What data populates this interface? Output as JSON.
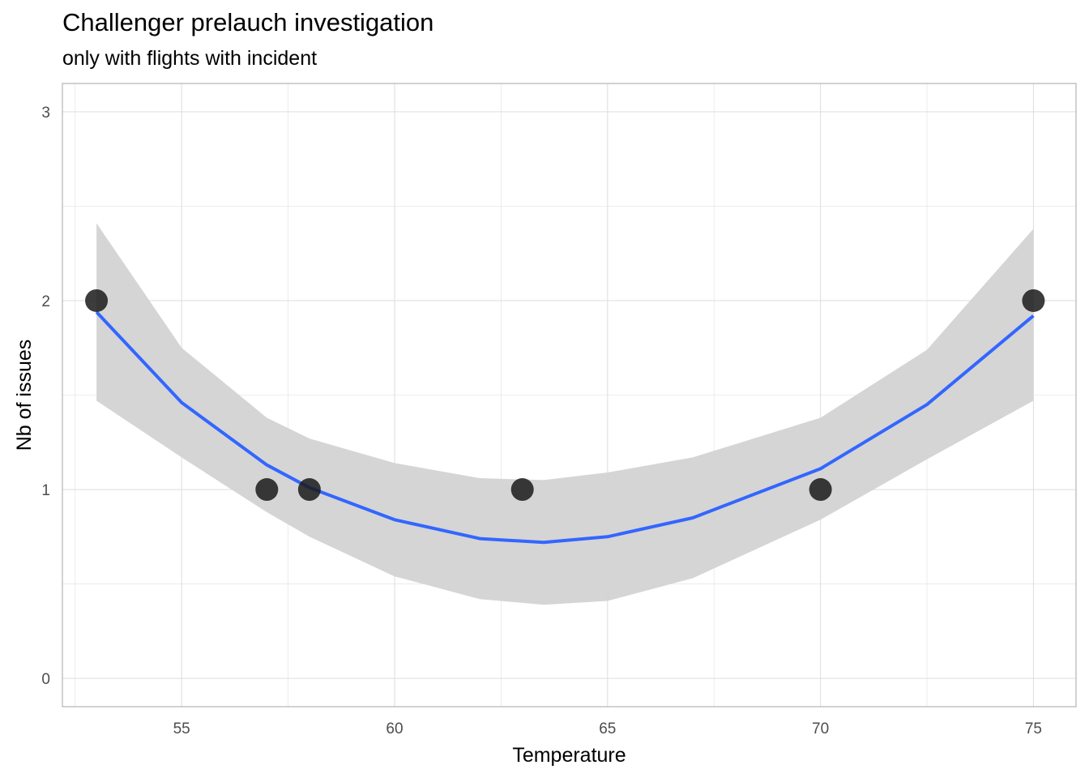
{
  "chart_data": {
    "type": "scatter",
    "title": "Challenger prelauch investigation",
    "subtitle": "only with flights with incident",
    "xlabel": "Temperature",
    "ylabel": "Nb of issues",
    "xlim": [
      52.2,
      76.0
    ],
    "ylim": [
      -0.15,
      3.15
    ],
    "x_ticks": [
      55,
      60,
      65,
      70,
      75
    ],
    "y_ticks": [
      0,
      1,
      2,
      3
    ],
    "grid": true,
    "points": [
      {
        "x": 53,
        "y": 2
      },
      {
        "x": 57,
        "y": 1
      },
      {
        "x": 58,
        "y": 1
      },
      {
        "x": 63,
        "y": 1
      },
      {
        "x": 70,
        "y": 1
      },
      {
        "x": 75,
        "y": 2
      }
    ],
    "smooth": {
      "method": "quadratic fit with confidence band",
      "x": [
        53,
        55,
        57,
        58,
        60,
        62,
        63.5,
        65,
        67,
        70,
        72.5,
        75
      ],
      "fit": [
        1.94,
        1.46,
        1.13,
        1.01,
        0.84,
        0.74,
        0.72,
        0.75,
        0.85,
        1.11,
        1.45,
        1.92
      ],
      "lower": [
        1.47,
        1.17,
        0.88,
        0.75,
        0.54,
        0.42,
        0.39,
        0.41,
        0.53,
        0.84,
        1.16,
        1.47
      ],
      "upper": [
        2.41,
        1.75,
        1.38,
        1.27,
        1.14,
        1.06,
        1.05,
        1.09,
        1.17,
        1.38,
        1.74,
        2.38
      ]
    },
    "colors": {
      "points": "#1a1a1a",
      "fit_line": "#3366ff",
      "band": "#d3d3d3",
      "grid": "#e0e0e0",
      "panel_border": "#b3b3b3"
    }
  }
}
